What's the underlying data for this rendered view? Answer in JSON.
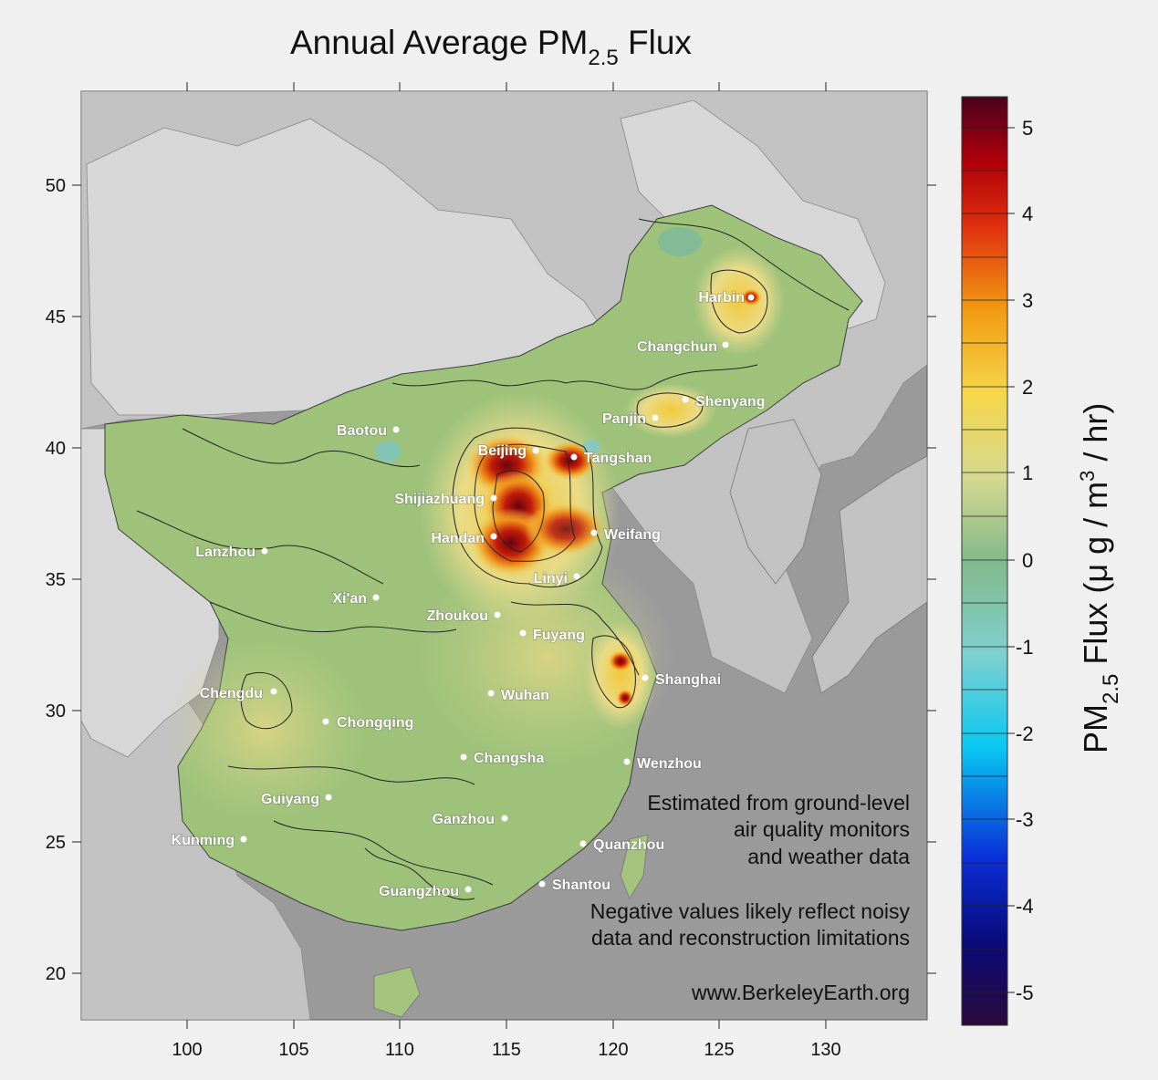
{
  "title": {
    "main": "Annual Average PM",
    "subscript": "2.5",
    "suffix": " Flux"
  },
  "map": {
    "x_ticks": [
      "100",
      "105",
      "110",
      "115",
      "120",
      "125",
      "130"
    ],
    "y_ticks": [
      "50",
      "45",
      "40",
      "35",
      "30",
      "25",
      "20"
    ],
    "cities": [
      {
        "name": "Harbin",
        "lon": 126.6,
        "lat": 45.7
      },
      {
        "name": "Changchun",
        "lon": 125.3,
        "lat": 43.9
      },
      {
        "name": "Shenyang",
        "lon": 123.4,
        "lat": 41.8
      },
      {
        "name": "Panjin",
        "lon": 122.1,
        "lat": 41.1
      },
      {
        "name": "Baotou",
        "lon": 110.0,
        "lat": 40.6
      },
      {
        "name": "Beijing",
        "lon": 116.4,
        "lat": 39.9
      },
      {
        "name": "Tangshan",
        "lon": 118.2,
        "lat": 39.6
      },
      {
        "name": "Shijiazhuang",
        "lon": 114.5,
        "lat": 38.0
      },
      {
        "name": "Handan",
        "lon": 114.5,
        "lat": 36.6
      },
      {
        "name": "Weifang",
        "lon": 119.1,
        "lat": 36.7
      },
      {
        "name": "Lanzhou",
        "lon": 103.8,
        "lat": 36.1
      },
      {
        "name": "Linyi",
        "lon": 118.3,
        "lat": 35.1
      },
      {
        "name": "Xi'an",
        "lon": 108.9,
        "lat": 34.3
      },
      {
        "name": "Zhoukou",
        "lon": 114.6,
        "lat": 33.6
      },
      {
        "name": "Fuyang",
        "lon": 115.8,
        "lat": 32.9
      },
      {
        "name": "Shanghai",
        "lon": 121.5,
        "lat": 31.2
      },
      {
        "name": "Chengdu",
        "lon": 104.1,
        "lat": 30.7
      },
      {
        "name": "Wuhan",
        "lon": 114.3,
        "lat": 30.6
      },
      {
        "name": "Chongqing",
        "lon": 106.5,
        "lat": 29.6
      },
      {
        "name": "Changsha",
        "lon": 113.0,
        "lat": 28.2
      },
      {
        "name": "Wenzhou",
        "lon": 120.7,
        "lat": 28.0
      },
      {
        "name": "Guiyang",
        "lon": 106.7,
        "lat": 26.6
      },
      {
        "name": "Ganzhou",
        "lon": 114.9,
        "lat": 25.8
      },
      {
        "name": "Kunming",
        "lon": 102.7,
        "lat": 25.0
      },
      {
        "name": "Quanzhou",
        "lon": 118.6,
        "lat": 24.9
      },
      {
        "name": "Shantou",
        "lon": 116.7,
        "lat": 23.4
      },
      {
        "name": "Guangzhou",
        "lon": 113.3,
        "lat": 23.1
      }
    ],
    "notes": {
      "line1": "Estimated from ground-level",
      "line2": "air quality monitors",
      "line3": "and weather data",
      "line4": "Negative values likely reflect noisy",
      "line5": "data and reconstruction limitations",
      "website": "www.BerkeleyEarth.org"
    },
    "colors": {
      "ocean": "#9a9a9a",
      "land": "#c2c2c2",
      "land_light": "#d7d7d7",
      "china_base": "#9fc27a"
    }
  },
  "colorbar": {
    "labels": [
      "5",
      "4",
      "3",
      "2",
      "1",
      "0",
      "-1",
      "-2",
      "-3",
      "-4",
      "-5"
    ],
    "title_main": "PM",
    "title_sub": "2.5",
    "title_rest": " Flux (μ g / m",
    "title_sup": "3",
    "title_end": " / hr)",
    "range": [
      -5.3,
      5.3
    ],
    "colors": [
      "#2a0a3a",
      "#0a0a7a",
      "#0a2fd8",
      "#09c8f2",
      "#7fd0cf",
      "#83b98a",
      "#d5d890",
      "#f6d64a",
      "#f29b12",
      "#e0300e",
      "#b00008",
      "#4a0220"
    ]
  }
}
